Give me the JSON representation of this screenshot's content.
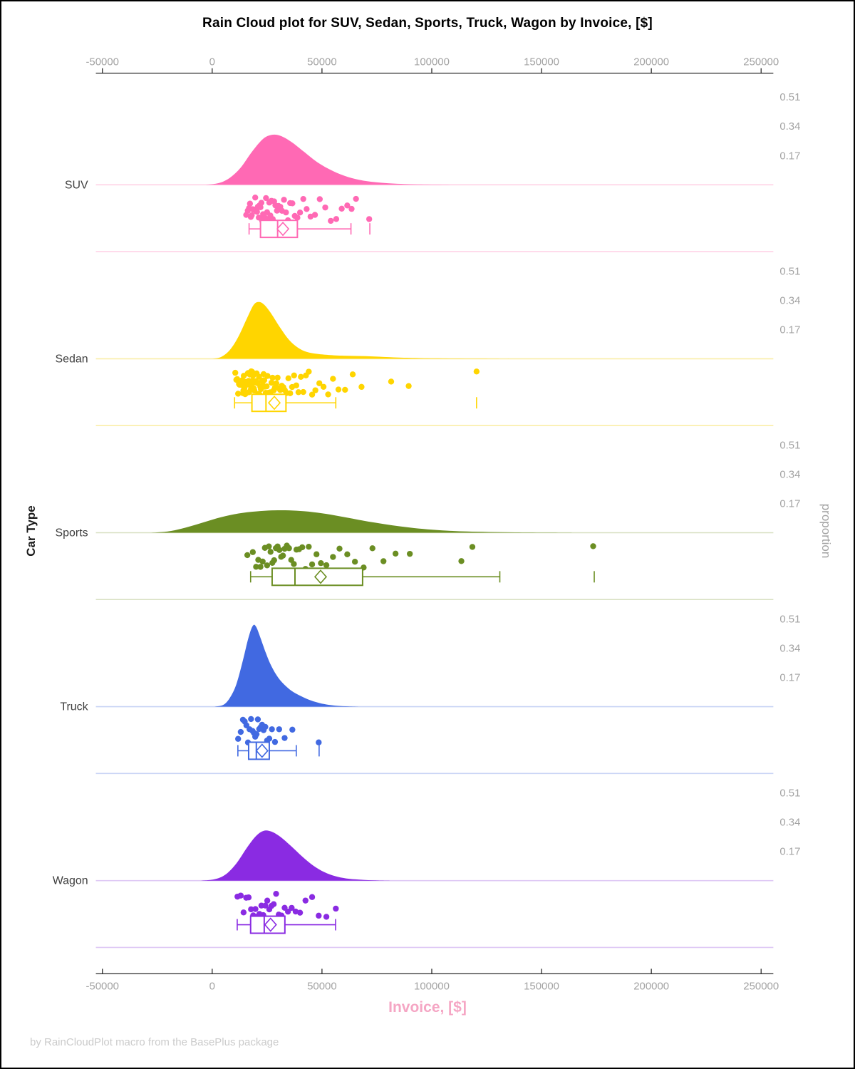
{
  "title": "Rain Cloud plot for SUV, Sedan, Sports, Truck, Wagon by Invoice, [$]",
  "footer": "by RainCloudPlot macro from the BasePlus package",
  "axes": {
    "x_label": "Invoice, [$]",
    "y_label": "Car Type",
    "y2_label": "proportion",
    "x_tick_values": [
      -50000,
      0,
      50000,
      100000,
      150000,
      200000,
      250000
    ],
    "x_tick_labels": [
      "-50000",
      "0",
      "50000",
      "100000",
      "150000",
      "200000",
      "250000"
    ],
    "proportion_tick_values": [
      0.17,
      0.34,
      0.51
    ],
    "proportion_tick_labels": [
      "0.17",
      "0.34",
      "0.51"
    ]
  },
  "chart_data": {
    "type": "raincloud",
    "title": "Rain Cloud plot for SUV, Sedan, Sports, Truck, Wagon by Invoice, [$]",
    "xlabel": "Invoice, [$]",
    "ylabel": "Car Type",
    "y2label": "proportion",
    "xlim": [
      -53000,
      258000
    ],
    "proportion_axis": [
      0.17,
      0.34,
      0.51
    ],
    "legend": "none",
    "categories": [
      "SUV",
      "Sedan",
      "Sports",
      "Truck",
      "Wagon"
    ],
    "series": [
      {
        "name": "SUV",
        "color": "#FF69B4",
        "light_color": "#FFD2E6",
        "density": [
          [
            -3000,
            0
          ],
          [
            3000,
            0.01
          ],
          [
            8000,
            0.04
          ],
          [
            13000,
            0.1
          ],
          [
            18000,
            0.19
          ],
          [
            23000,
            0.265
          ],
          [
            27000,
            0.29
          ],
          [
            31000,
            0.285
          ],
          [
            36000,
            0.25
          ],
          [
            42000,
            0.19
          ],
          [
            48000,
            0.13
          ],
          [
            55000,
            0.08
          ],
          [
            62000,
            0.045
          ],
          [
            70000,
            0.022
          ],
          [
            80000,
            0.009
          ],
          [
            92000,
            0.003
          ],
          [
            105000,
            0.001
          ],
          [
            120000,
            0
          ]
        ],
        "points": [
          15500,
          16200,
          16800,
          17200,
          17600,
          18000,
          18400,
          18800,
          19200,
          19600,
          20000,
          20400,
          20800,
          21200,
          21600,
          22000,
          22400,
          22800,
          23200,
          23600,
          24000,
          24500,
          25000,
          25500,
          26000,
          26500,
          27000,
          27600,
          28200,
          28800,
          29500,
          30200,
          31000,
          31800,
          32700,
          33600,
          34500,
          35500,
          36500,
          37600,
          38800,
          40000,
          41500,
          43000,
          44800,
          46800,
          49000,
          51500,
          54000,
          56500,
          59000,
          61500,
          63500,
          65500,
          71500
        ],
        "box": {
          "low": 16800,
          "q1": 22000,
          "median": 29800,
          "q3": 38800,
          "high": 63200,
          "mean": 32200,
          "outliers": [
            71800
          ]
        }
      },
      {
        "name": "Sedan",
        "color": "#FFD500",
        "light_color": "#FAEEA8",
        "density": [
          [
            0,
            0
          ],
          [
            4000,
            0.01
          ],
          [
            8000,
            0.05
          ],
          [
            12000,
            0.13
          ],
          [
            16000,
            0.24
          ],
          [
            19000,
            0.315
          ],
          [
            21500,
            0.33
          ],
          [
            24000,
            0.31
          ],
          [
            27000,
            0.26
          ],
          [
            31000,
            0.18
          ],
          [
            35000,
            0.11
          ],
          [
            39000,
            0.065
          ],
          [
            43000,
            0.04
          ],
          [
            48000,
            0.028
          ],
          [
            53000,
            0.022
          ],
          [
            60000,
            0.018
          ],
          [
            68000,
            0.016
          ],
          [
            76000,
            0.012
          ],
          [
            85000,
            0.007
          ],
          [
            95000,
            0.004
          ],
          [
            108000,
            0.002
          ],
          [
            122000,
            0.001
          ],
          [
            135000,
            0
          ]
        ],
        "points": [
          10500,
          11000,
          11400,
          11800,
          12200,
          12500,
          12800,
          13100,
          13400,
          13700,
          14000,
          14200,
          14400,
          14600,
          14800,
          15000,
          15200,
          15400,
          15600,
          15800,
          16000,
          16200,
          16400,
          16600,
          16800,
          17000,
          17200,
          17400,
          17600,
          17800,
          18000,
          18200,
          18400,
          18600,
          18800,
          19000,
          19200,
          19400,
          19600,
          19800,
          20000,
          20250,
          20500,
          20750,
          21000,
          21300,
          21600,
          21900,
          22200,
          22500,
          22800,
          23100,
          23400,
          23700,
          24000,
          24400,
          24800,
          25200,
          25600,
          26000,
          26500,
          27000,
          27500,
          28000,
          28600,
          29200,
          29800,
          30400,
          31000,
          31700,
          32400,
          33100,
          33900,
          34700,
          35500,
          36400,
          37300,
          38300,
          39300,
          40400,
          41500,
          42700,
          44000,
          45500,
          47000,
          48800,
          50700,
          52800,
          55000,
          57500,
          60500,
          64000,
          68000,
          81500,
          89500,
          120400
        ],
        "box": {
          "low": 10200,
          "q1": 18100,
          "median": 24500,
          "q3": 33600,
          "high": 56300,
          "mean": 28300,
          "outliers": [
            120400
          ]
        }
      },
      {
        "name": "Sports",
        "color": "#6B8E23",
        "light_color": "#D8E0C2",
        "density": [
          [
            -28000,
            0
          ],
          [
            -20000,
            0.008
          ],
          [
            -12000,
            0.03
          ],
          [
            -4000,
            0.06
          ],
          [
            4000,
            0.09
          ],
          [
            12000,
            0.112
          ],
          [
            20000,
            0.124
          ],
          [
            28000,
            0.13
          ],
          [
            35000,
            0.13
          ],
          [
            42000,
            0.125
          ],
          [
            50000,
            0.113
          ],
          [
            58000,
            0.096
          ],
          [
            66000,
            0.077
          ],
          [
            74000,
            0.059
          ],
          [
            82000,
            0.043
          ],
          [
            90000,
            0.03
          ],
          [
            98000,
            0.02
          ],
          [
            107000,
            0.012
          ],
          [
            116000,
            0.007
          ],
          [
            126000,
            0.004
          ],
          [
            138000,
            0.002
          ],
          [
            152000,
            0.001
          ],
          [
            165000,
            0
          ]
        ],
        "points": [
          16000,
          18500,
          20000,
          21000,
          22000,
          23000,
          24000,
          25000,
          25800,
          26600,
          27400,
          28200,
          29000,
          29800,
          30600,
          31400,
          32200,
          33000,
          34000,
          35000,
          36000,
          37200,
          38400,
          39600,
          41000,
          42500,
          44000,
          45500,
          47500,
          49500,
          52000,
          55000,
          58000,
          61500,
          65000,
          69000,
          73000,
          78000,
          83500,
          90000,
          113500,
          118500,
          173500
        ],
        "box": {
          "low": 17500,
          "q1": 27300,
          "median": 37700,
          "q3": 68500,
          "high": 131000,
          "mean": 49400,
          "outliers": [
            174000
          ]
        }
      },
      {
        "name": "Truck",
        "color": "#4169E1",
        "light_color": "#C9D4F5",
        "density": [
          [
            1000,
            0
          ],
          [
            5000,
            0.01
          ],
          [
            8000,
            0.05
          ],
          [
            11000,
            0.13
          ],
          [
            14000,
            0.27
          ],
          [
            16500,
            0.4
          ],
          [
            18500,
            0.47
          ],
          [
            20000,
            0.465
          ],
          [
            22000,
            0.4
          ],
          [
            24500,
            0.31
          ],
          [
            27000,
            0.235
          ],
          [
            30000,
            0.17
          ],
          [
            33500,
            0.12
          ],
          [
            37000,
            0.085
          ],
          [
            41000,
            0.058
          ],
          [
            45000,
            0.036
          ],
          [
            49000,
            0.021
          ],
          [
            53000,
            0.011
          ],
          [
            57000,
            0.005
          ],
          [
            62000,
            0.002
          ],
          [
            67000,
            0
          ]
        ],
        "points": [
          11800,
          13000,
          14000,
          14800,
          15600,
          16300,
          17000,
          17700,
          18400,
          19000,
          19600,
          20200,
          20800,
          21400,
          22000,
          22700,
          23400,
          24200,
          25000,
          26000,
          27200,
          28600,
          30500,
          33000,
          36500,
          48500
        ],
        "box": {
          "low": 11700,
          "q1": 16600,
          "median": 20100,
          "q3": 26000,
          "high": 38300,
          "mean": 22700,
          "outliers": [
            48700
          ]
        }
      },
      {
        "name": "Wagon",
        "color": "#8A2BE2",
        "light_color": "#DFC9F5",
        "density": [
          [
            -5000,
            0
          ],
          [
            1000,
            0.008
          ],
          [
            6000,
            0.035
          ],
          [
            11000,
            0.1
          ],
          [
            16000,
            0.195
          ],
          [
            20000,
            0.26
          ],
          [
            23500,
            0.29
          ],
          [
            27000,
            0.285
          ],
          [
            31000,
            0.255
          ],
          [
            36000,
            0.2
          ],
          [
            41000,
            0.14
          ],
          [
            46000,
            0.088
          ],
          [
            51000,
            0.05
          ],
          [
            56000,
            0.026
          ],
          [
            61000,
            0.013
          ],
          [
            67000,
            0.006
          ],
          [
            74000,
            0.002
          ],
          [
            82000,
            0
          ]
        ],
        "points": [
          11500,
          13000,
          14300,
          15500,
          16600,
          17700,
          18700,
          19700,
          20600,
          21500,
          22400,
          23300,
          24200,
          25100,
          26000,
          27000,
          28000,
          29100,
          30300,
          31600,
          33000,
          34500,
          36200,
          38000,
          40000,
          42500,
          45500,
          48500,
          52000,
          56300
        ],
        "box": {
          "low": 11400,
          "q1": 17500,
          "median": 23700,
          "q3": 33100,
          "high": 56200,
          "mean": 26600,
          "outliers": []
        }
      }
    ]
  },
  "style_colors": {
    "axis_line": "#2b2b2b",
    "tick_label": "#a3a3a3",
    "category_label": "#3e3e3e",
    "proportion_label": "#a3a3a3",
    "x_axis_title": "#f5a6c4",
    "footer": "#cbcbcb"
  }
}
